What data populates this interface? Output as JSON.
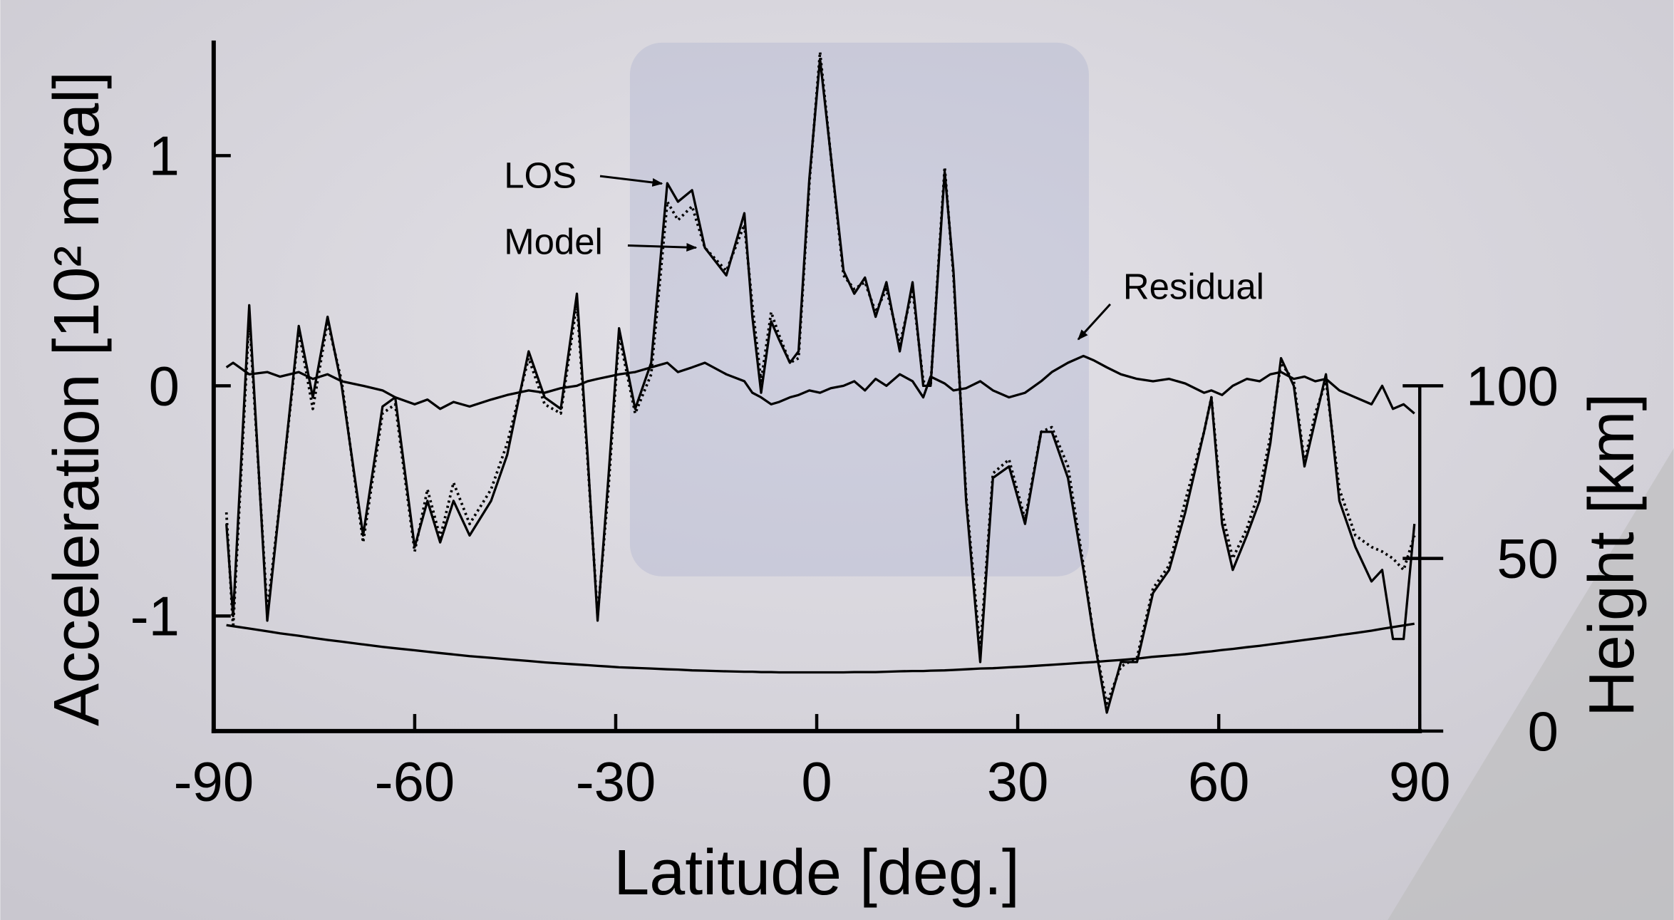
{
  "chart_data": {
    "type": "line",
    "x_label": "Latitude [deg.]",
    "y_label": "Acceleration [10² mgal]",
    "y2_label": "Height [km]",
    "xlim": [
      -90,
      90
    ],
    "xticks": [
      -90,
      -60,
      -30,
      0,
      30,
      60,
      90
    ],
    "ylim": [
      -1.5,
      1.5
    ],
    "yticks": [
      -1,
      0,
      1
    ],
    "y2lim": [
      0,
      200
    ],
    "y2ticks": [
      0,
      50,
      100
    ],
    "x": [
      -88.1,
      -87.1,
      -84.7,
      -82,
      -80.1,
      -77.3,
      -75.2,
      -73,
      -70.9,
      -67.7,
      -64.8,
      -62.9,
      -60,
      -58.1,
      -56.2,
      -54.2,
      -51.8,
      -48.6,
      -46.2,
      -43,
      -40.6,
      -38.2,
      -35.8,
      -34.2,
      -32.7,
      -31.1,
      -29.5,
      -27.1,
      -24.7,
      -22.3,
      -20.7,
      -18.6,
      -16.7,
      -13.5,
      -10.8,
      -9.6,
      -8.3,
      -6.8,
      -5.6,
      -4,
      -2.7,
      -1.1,
      0.5,
      2.1,
      4,
      5.6,
      7.2,
      8.8,
      10.4,
      12.4,
      14.3,
      15.9,
      17,
      19.1,
      20.4,
      22.3,
      24.4,
      26.3,
      28.7,
      31.1,
      33.5,
      35.1,
      37.5,
      39.8,
      41.4,
      43.3,
      45.4,
      47.8,
      50.2,
      52.6,
      55,
      57.8,
      58.9,
      60.5,
      62.1,
      64.2,
      66.1,
      67.7,
      69.3,
      71.2,
      72.8,
      74.4,
      76,
      78,
      80.4,
      82.8,
      84.4,
      86,
      87.6,
      89.2
    ],
    "series": [
      {
        "name": "LOS",
        "color": "#000000",
        "dash": false,
        "values": [
          -0.6,
          -1.0,
          0.35,
          -1.02,
          -0.5,
          0.26,
          -0.05,
          0.3,
          0.0,
          -0.65,
          -0.09,
          -0.05,
          -0.7,
          -0.5,
          -0.68,
          -0.5,
          -0.65,
          -0.5,
          -0.3,
          0.15,
          -0.05,
          -0.1,
          0.4,
          -0.3,
          -1.02,
          -0.4,
          0.25,
          -0.1,
          0.1,
          0.88,
          0.8,
          0.85,
          0.6,
          0.48,
          0.75,
          0.3,
          -0.03,
          0.28,
          0.2,
          0.1,
          0.15,
          0.9,
          1.42,
          1.0,
          0.5,
          0.4,
          0.47,
          0.3,
          0.45,
          0.15,
          0.45,
          0.0,
          0.0,
          0.93,
          0.5,
          -0.5,
          -1.2,
          -0.4,
          -0.35,
          -0.6,
          -0.2,
          -0.2,
          -0.4,
          -0.8,
          -1.1,
          -1.42,
          -1.2,
          -1.2,
          -0.9,
          -0.8,
          -0.55,
          -0.2,
          -0.05,
          -0.6,
          -0.8,
          -0.65,
          -0.5,
          -0.25,
          0.12,
          0.0,
          -0.35,
          -0.15,
          0.05,
          -0.5,
          -0.7,
          -0.85,
          -0.8,
          -1.1,
          -1.1,
          -0.6
        ]
      },
      {
        "name": "Model",
        "color": "#000000",
        "dash": true,
        "values": [
          -0.55,
          -1.05,
          0.3,
          -0.98,
          -0.5,
          0.24,
          -0.1,
          0.28,
          0.02,
          -0.68,
          -0.12,
          -0.08,
          -0.72,
          -0.45,
          -0.66,
          -0.42,
          -0.6,
          -0.45,
          -0.25,
          0.12,
          -0.08,
          -0.12,
          0.36,
          -0.32,
          -1.0,
          -0.45,
          0.22,
          -0.12,
          0.05,
          0.8,
          0.72,
          0.78,
          0.6,
          0.5,
          0.7,
          0.35,
          0.02,
          0.32,
          0.22,
          0.1,
          0.12,
          0.88,
          1.45,
          1.0,
          0.48,
          0.42,
          0.45,
          0.32,
          0.42,
          0.18,
          0.42,
          0.02,
          0.0,
          0.95,
          0.48,
          -0.48,
          -1.15,
          -0.38,
          -0.32,
          -0.58,
          -0.2,
          -0.18,
          -0.35,
          -0.78,
          -1.1,
          -1.38,
          -1.22,
          -1.18,
          -0.88,
          -0.78,
          -0.5,
          -0.2,
          -0.05,
          -0.55,
          -0.75,
          -0.62,
          -0.45,
          -0.22,
          0.1,
          0.02,
          -0.33,
          -0.12,
          0.02,
          -0.45,
          -0.65,
          -0.7,
          -0.72,
          -0.75,
          -0.8,
          -0.65
        ]
      },
      {
        "name": "Residual",
        "color": "#000000",
        "dash": false,
        "values": [
          0.08,
          0.1,
          0.05,
          0.06,
          0.04,
          0.06,
          0.03,
          0.05,
          0.02,
          0.0,
          -0.02,
          -0.05,
          -0.08,
          -0.06,
          -0.1,
          -0.07,
          -0.09,
          -0.06,
          -0.04,
          -0.02,
          -0.03,
          -0.01,
          0.0,
          0.02,
          0.03,
          0.04,
          0.05,
          0.06,
          0.08,
          0.1,
          0.06,
          0.08,
          0.1,
          0.05,
          0.02,
          -0.03,
          -0.05,
          -0.08,
          -0.07,
          -0.05,
          -0.04,
          -0.02,
          -0.03,
          -0.01,
          0.0,
          0.02,
          -0.02,
          0.03,
          0.0,
          0.05,
          0.02,
          -0.05,
          0.04,
          0.01,
          -0.02,
          -0.01,
          0.02,
          -0.02,
          -0.05,
          -0.03,
          0.02,
          0.06,
          0.1,
          0.13,
          0.11,
          0.08,
          0.05,
          0.03,
          0.02,
          0.03,
          0.01,
          -0.03,
          -0.02,
          -0.04,
          0.0,
          0.03,
          0.02,
          0.05,
          0.06,
          0.03,
          0.04,
          0.02,
          0.03,
          -0.02,
          -0.05,
          -0.08,
          0.0,
          -0.1,
          -0.08,
          -0.12
        ]
      },
      {
        "color": "#000000",
        "dash": false,
        "axis": "y2",
        "values": [
          30.7,
          30.4,
          29.7,
          28.9,
          28.3,
          27.6,
          27.0,
          26.4,
          25.9,
          25.1,
          24.4,
          24.0,
          23.4,
          23.0,
          22.6,
          22.2,
          21.7,
          21.2,
          20.8,
          20.3,
          19.9,
          19.6,
          19.3,
          19.1,
          18.9,
          18.7,
          18.5,
          18.3,
          18.1,
          17.9,
          17.8,
          17.6,
          17.5,
          17.3,
          17.2,
          17.2,
          17.1,
          17.1,
          17.0,
          17.0,
          17.0,
          17.0,
          17.0,
          17.0,
          17.0,
          17.1,
          17.1,
          17.1,
          17.2,
          17.3,
          17.4,
          17.4,
          17.5,
          17.6,
          17.7,
          17.9,
          18.1,
          18.2,
          18.5,
          18.7,
          19.0,
          19.2,
          19.5,
          19.8,
          20.0,
          20.3,
          20.6,
          21.0,
          21.5,
          21.9,
          22.3,
          22.9,
          23.1,
          23.5,
          23.8,
          24.3,
          24.7,
          25.1,
          25.5,
          26.0,
          26.4,
          26.8,
          27.2,
          27.8,
          28.4,
          29.1,
          29.6,
          30.1,
          30.6,
          31.1
        ]
      }
    ]
  }
}
